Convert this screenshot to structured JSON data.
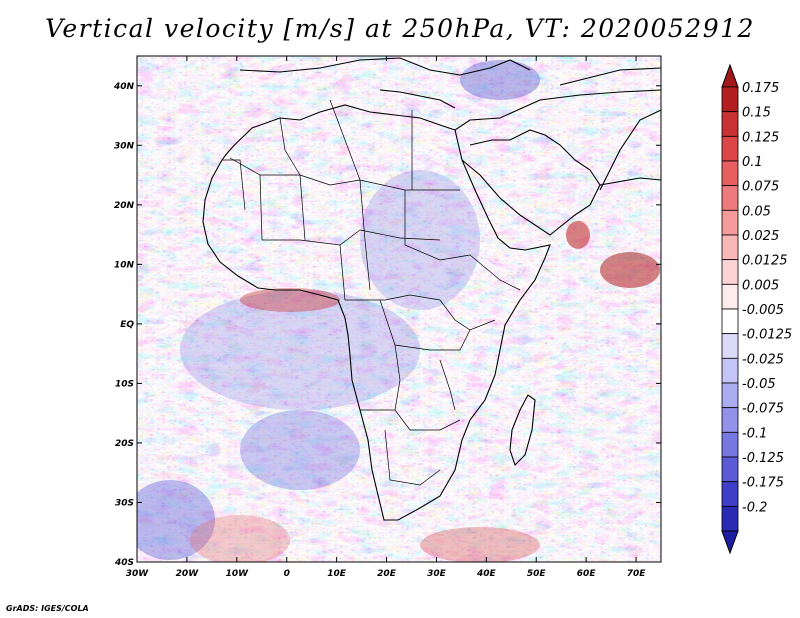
{
  "title": "Vertical velocity [m/s] at 250hPa, VT: 2020052912",
  "credit": "GrADS: IGES/COLA",
  "map": {
    "lon_range": [
      -30,
      75
    ],
    "lat_range": [
      -40,
      45
    ],
    "lon_ticks": [
      {
        "value": -30,
        "label": "30W"
      },
      {
        "value": -20,
        "label": "20W"
      },
      {
        "value": -10,
        "label": "10W"
      },
      {
        "value": 0,
        "label": "0"
      },
      {
        "value": 10,
        "label": "10E"
      },
      {
        "value": 20,
        "label": "20E"
      },
      {
        "value": 30,
        "label": "30E"
      },
      {
        "value": 40,
        "label": "40E"
      },
      {
        "value": 50,
        "label": "50E"
      },
      {
        "value": 60,
        "label": "60E"
      },
      {
        "value": 70,
        "label": "70E"
      }
    ],
    "lat_ticks": [
      {
        "value": 40,
        "label": "40N"
      },
      {
        "value": 30,
        "label": "30N"
      },
      {
        "value": 20,
        "label": "20N"
      },
      {
        "value": 10,
        "label": "10N"
      },
      {
        "value": 0,
        "label": "EQ"
      },
      {
        "value": -10,
        "label": "10S"
      },
      {
        "value": -20,
        "label": "20S"
      },
      {
        "value": -30,
        "label": "30S"
      },
      {
        "value": -40,
        "label": "40S"
      }
    ]
  },
  "colorbar": {
    "levels": [
      {
        "label": "0.175",
        "color": "#b31e1e"
      },
      {
        "label": "0.15",
        "color": "#c83232"
      },
      {
        "label": "0.125",
        "color": "#dc4646"
      },
      {
        "label": "0.1",
        "color": "#e66060"
      },
      {
        "label": "0.075",
        "color": "#ee7c7c"
      },
      {
        "label": "0.05",
        "color": "#f59a9a"
      },
      {
        "label": "0.025",
        "color": "#f9b8b8"
      },
      {
        "label": "0.0125",
        "color": "#fcd4d4"
      },
      {
        "label": "0.005",
        "color": "#feecec"
      },
      {
        "label": "-0.005",
        "color": "#ffffff"
      },
      {
        "label": "-0.0125",
        "color": "#dcdcfa"
      },
      {
        "label": "-0.025",
        "color": "#c4c4f6"
      },
      {
        "label": "-0.05",
        "color": "#acacf0"
      },
      {
        "label": "-0.075",
        "color": "#9292ea"
      },
      {
        "label": "-0.1",
        "color": "#7878e2"
      },
      {
        "label": "-0.125",
        "color": "#5c5cd8"
      },
      {
        "label": "-0.175",
        "color": "#3e3ec8"
      },
      {
        "label": "-0.2",
        "color": "#2a2ab4"
      }
    ],
    "top_color": "#a01818",
    "bottom_color": "#1e1ea0"
  },
  "colors": {
    "ascent": "#e06a6a",
    "descent": "#6e6ee0",
    "neutral": "#f2eef2",
    "coast": "#000000"
  }
}
